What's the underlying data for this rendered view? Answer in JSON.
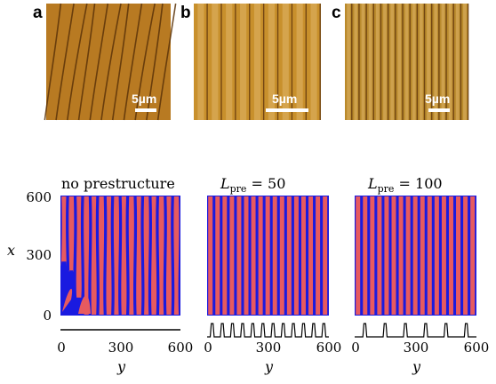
{
  "figure": {
    "top_panels": [
      {
        "label": "a",
        "scale_bar": "5µm",
        "base_color": "#b87a22",
        "stripe_count": 11,
        "stripe_period_rel": 1.0,
        "wavy": true
      },
      {
        "label": "b",
        "scale_bar": "5µm",
        "base_color": "#c8902c",
        "stripe_count": 9,
        "stripe_period_rel": 1.0,
        "wavy": false
      },
      {
        "label": "c",
        "scale_bar": "5µm",
        "base_color": "#b98a2c",
        "stripe_count": 17,
        "stripe_period_rel": 0.55,
        "wavy": false
      }
    ],
    "sim_panels": [
      {
        "title": "no prestructure",
        "stripes": 16,
        "prestructure_peaks": 0,
        "disordered_corner": true
      },
      {
        "title_math": {
          "main": "L",
          "sub": "pre",
          "rest": " = 50"
        },
        "stripes": 17,
        "prestructure_peaks": 12,
        "disordered_corner": false
      },
      {
        "title_math": {
          "main": "L",
          "sub": "pre",
          "rest": " = 100"
        },
        "stripes": 17,
        "prestructure_peaks": 6,
        "disordered_corner": false
      }
    ],
    "x_axis": {
      "label": "x",
      "ticks": [
        "600",
        "300",
        "0"
      ]
    },
    "y_axis": {
      "label": "y",
      "ticks": [
        "0",
        "300",
        "600"
      ]
    },
    "colors": {
      "sim_red": "#e75a5f",
      "sim_blue": "#1a1ae0",
      "line": "#000000"
    }
  }
}
